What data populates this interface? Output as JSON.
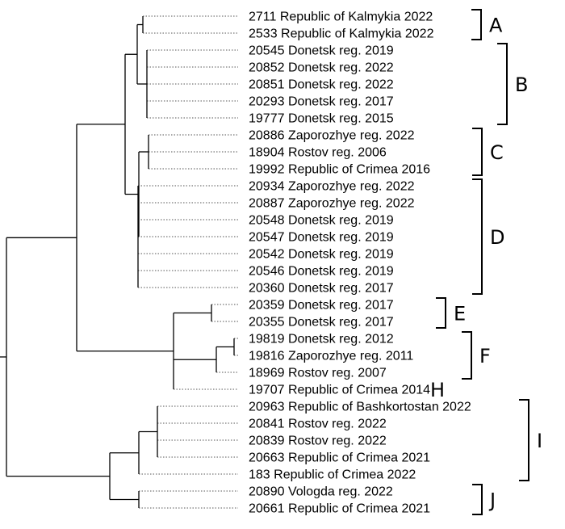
{
  "leaves": [
    "2711 Republic of Kalmykia 2022",
    "2533 Republic of Kalmykia 2022",
    "20545 Donetsk reg. 2019",
    "20852 Donetsk reg. 2022",
    "20851 Donetsk reg. 2022",
    "20293 Donetsk reg. 2017",
    "19777 Donetsk reg. 2015",
    "20886 Zaporozhye reg. 2022",
    "18904 Rostov reg. 2006",
    "19992 Republic of Crimea 2016",
    "20934 Zaporozhye reg. 2022",
    "20887 Zaporozhye reg. 2022",
    "20548 Donetsk reg. 2019",
    "20547 Donetsk reg. 2019",
    "20542 Donetsk reg. 2019",
    "20546 Donetsk reg. 2019",
    "20360 Donetsk reg. 2017",
    "20359 Donetsk reg. 2017",
    "20355 Donetsk reg. 2017",
    "19819 Donetsk reg. 2012",
    "19816 Zaporozhye reg. 2011",
    "18969 Rostov reg. 2007",
    "19707 Republic of Crimea 2014",
    "20963 Republic of Bashkortostan 2022",
    "20841 Rostov reg. 2022",
    "20839 Rostov reg. 2022",
    "20663 Republic of Crimea 2021",
    "183 Republic of Crimea 2022",
    "20890 Vologda reg. 2022",
    "20661 Republic of Crimea 2021"
  ],
  "groups": [
    {
      "letter": "A",
      "first": 0,
      "last": 1
    },
    {
      "letter": "B",
      "first": 2,
      "last": 6
    },
    {
      "letter": "C",
      "first": 7,
      "last": 9
    },
    {
      "letter": "D",
      "first": 10,
      "last": 16
    },
    {
      "letter": "E",
      "first": 17,
      "last": 18
    },
    {
      "letter": "F",
      "first": 19,
      "last": 21
    },
    {
      "letter": "H",
      "first": 22,
      "last": 22
    },
    {
      "letter": "I",
      "first": 23,
      "last": 27
    },
    {
      "letter": "J",
      "first": 28,
      "last": 29
    }
  ]
}
